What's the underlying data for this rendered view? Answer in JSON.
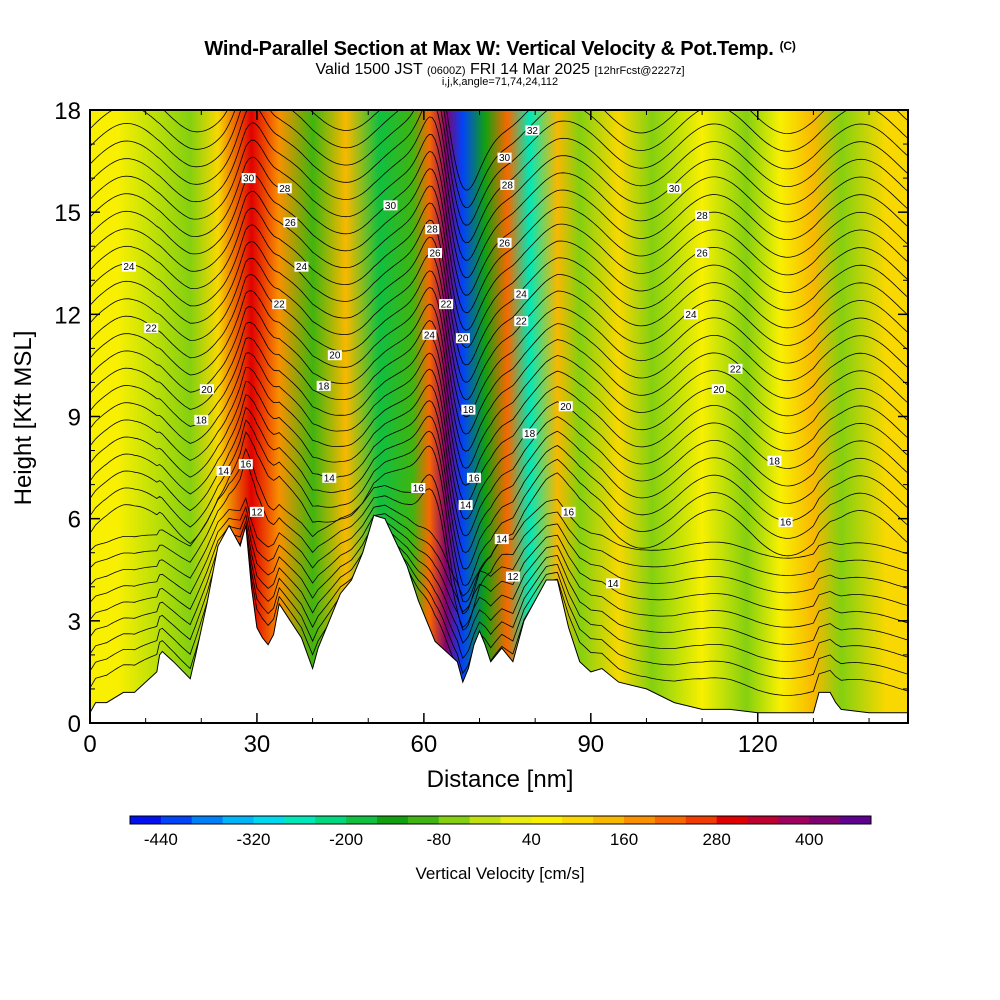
{
  "header": {
    "title": "Wind-Parallel Section at Max W: Vertical Velocity & Pot.Temp.",
    "copyright": "(C)",
    "valid_prefix": "Valid 1500 JST ",
    "valid_utc": "(0600Z)",
    "valid_date": " FRI 14 Mar 2025 ",
    "valid_fcst": "[12hrFcst@2227z]",
    "params": "i,j,k,angle=71,74,24,112"
  },
  "chart_data": {
    "type": "heatmap",
    "xlabel": "Distance [nm]",
    "ylabel": "Height [Kft MSL]",
    "xlim": [
      0,
      147
    ],
    "ylim": [
      0,
      18
    ],
    "x_ticks": [
      0,
      30,
      60,
      90,
      120
    ],
    "x_tick_labels": [
      "0",
      "30",
      "60",
      "90",
      "120"
    ],
    "y_ticks": [
      0,
      3,
      6,
      9,
      12,
      15,
      18
    ],
    "y_tick_labels": [
      "0",
      "3",
      "6",
      "9",
      "12",
      "15",
      "18"
    ],
    "colorbar": {
      "title": "Vertical Velocity [cm/s]",
      "min": -480,
      "max": 480,
      "step": 40,
      "tick_labels": [
        "-440",
        "-320",
        "-200",
        "-80",
        "40",
        "160",
        "280",
        "400"
      ],
      "tick_values": [
        -440,
        -320,
        -200,
        -80,
        40,
        160,
        280,
        400
      ],
      "colors": [
        "#0010f0",
        "#0044f8",
        "#0080f8",
        "#00b4f8",
        "#00d8f0",
        "#00e8b8",
        "#00d880",
        "#10c040",
        "#10a010",
        "#40b410",
        "#84d010",
        "#c0e010",
        "#e8ec10",
        "#f8f000",
        "#f8d800",
        "#f8b800",
        "#f89000",
        "#f86800",
        "#f03c00",
        "#e00000",
        "#c00030",
        "#a00060",
        "#800070",
        "#600090"
      ]
    },
    "vertical_velocity_features": [
      {
        "x_center": 5,
        "value": 40
      },
      {
        "x_center": 18,
        "value": -80
      },
      {
        "x_center": 23,
        "value": 80
      },
      {
        "x_center": 29,
        "value": 300
      },
      {
        "x_center": 34,
        "value": 160
      },
      {
        "x_center": 40,
        "value": -120
      },
      {
        "x_center": 46,
        "value": 120
      },
      {
        "x_center": 52,
        "value": -200
      },
      {
        "x_center": 58,
        "value": -100
      },
      {
        "x_center": 61,
        "value": 200
      },
      {
        "x_center": 64,
        "value": 400
      },
      {
        "x_center": 67,
        "value": -440
      },
      {
        "x_center": 71,
        "value": -160
      },
      {
        "x_center": 75,
        "value": 200
      },
      {
        "x_center": 79,
        "value": -280
      },
      {
        "x_center": 84,
        "value": 120
      },
      {
        "x_center": 88,
        "value": -80
      },
      {
        "x_center": 95,
        "value": 100
      },
      {
        "x_center": 101,
        "value": -80
      },
      {
        "x_center": 110,
        "value": 60
      },
      {
        "x_center": 118,
        "value": -80
      },
      {
        "x_center": 124,
        "value": 60
      },
      {
        "x_center": 130,
        "value": 120
      },
      {
        "x_center": 135,
        "value": -80
      },
      {
        "x_center": 143,
        "value": 80
      }
    ],
    "terrain": {
      "x": [
        0,
        1,
        3,
        6,
        8,
        10,
        12,
        12.5,
        13,
        15,
        18,
        19,
        21,
        23,
        25,
        26,
        27,
        28,
        29,
        30,
        31,
        32,
        33,
        34,
        36,
        38,
        40,
        41,
        43,
        45,
        47,
        49,
        51,
        53,
        55,
        57,
        59,
        61,
        62,
        64,
        66,
        67,
        68,
        69,
        70,
        71,
        72,
        74,
        76,
        78,
        80,
        82,
        84,
        86,
        88,
        90,
        92,
        95,
        100,
        105,
        110,
        115,
        120,
        125,
        130,
        131,
        133,
        134,
        135,
        140,
        147
      ],
      "y": [
        0.3,
        0.6,
        0.6,
        0.9,
        0.9,
        1.2,
        1.5,
        2.0,
        2.1,
        1.8,
        1.3,
        2.0,
        3.5,
        5.2,
        5.8,
        5.5,
        5.2,
        5.8,
        4.0,
        2.8,
        2.5,
        2.3,
        2.6,
        3.5,
        3.0,
        2.5,
        1.6,
        2.2,
        3.0,
        3.8,
        4.2,
        5.0,
        6.1,
        6.0,
        5.3,
        4.6,
        3.6,
        2.8,
        2.4,
        2.1,
        1.8,
        1.2,
        1.6,
        2.3,
        2.7,
        2.3,
        1.8,
        2.2,
        1.8,
        3.0,
        3.6,
        4.2,
        4.2,
        2.8,
        1.8,
        1.5,
        1.6,
        1.2,
        1.0,
        0.6,
        0.4,
        0.4,
        0.3,
        0.3,
        0.3,
        0.9,
        0.9,
        0.6,
        0.4,
        0.3,
        0.3
      ]
    },
    "theta_contour_labels": [
      {
        "x": 7,
        "y": 13.4,
        "text": "24"
      },
      {
        "x": 11,
        "y": 11.6,
        "text": "22"
      },
      {
        "x": 21,
        "y": 9.8,
        "text": "20"
      },
      {
        "x": 20,
        "y": 8.9,
        "text": "18"
      },
      {
        "x": 24,
        "y": 7.4,
        "text": "14"
      },
      {
        "x": 28,
        "y": 7.6,
        "text": "16"
      },
      {
        "x": 30,
        "y": 6.2,
        "text": "12"
      },
      {
        "x": 28.5,
        "y": 16.0,
        "text": "30"
      },
      {
        "x": 35,
        "y": 15.7,
        "text": "28"
      },
      {
        "x": 36,
        "y": 14.7,
        "text": "26"
      },
      {
        "x": 38,
        "y": 13.4,
        "text": "24"
      },
      {
        "x": 34,
        "y": 12.3,
        "text": "22"
      },
      {
        "x": 44,
        "y": 10.8,
        "text": "20"
      },
      {
        "x": 42,
        "y": 9.9,
        "text": "18"
      },
      {
        "x": 43,
        "y": 7.2,
        "text": "14"
      },
      {
        "x": 54,
        "y": 15.2,
        "text": "30"
      },
      {
        "x": 61.5,
        "y": 14.5,
        "text": "28"
      },
      {
        "x": 62,
        "y": 13.8,
        "text": "26"
      },
      {
        "x": 64,
        "y": 12.3,
        "text": "22"
      },
      {
        "x": 61,
        "y": 11.4,
        "text": "24"
      },
      {
        "x": 59,
        "y": 6.9,
        "text": "16"
      },
      {
        "x": 67,
        "y": 11.3,
        "text": "20"
      },
      {
        "x": 68,
        "y": 9.2,
        "text": "18"
      },
      {
        "x": 69,
        "y": 7.2,
        "text": "16"
      },
      {
        "x": 67.5,
        "y": 6.4,
        "text": "14"
      },
      {
        "x": 74.5,
        "y": 16.6,
        "text": "30"
      },
      {
        "x": 75,
        "y": 15.8,
        "text": "28"
      },
      {
        "x": 74.5,
        "y": 14.1,
        "text": "26"
      },
      {
        "x": 79.5,
        "y": 17.4,
        "text": "32"
      },
      {
        "x": 77.5,
        "y": 12.6,
        "text": "24"
      },
      {
        "x": 77.5,
        "y": 11.8,
        "text": "22"
      },
      {
        "x": 85.5,
        "y": 9.3,
        "text": "20"
      },
      {
        "x": 79,
        "y": 8.5,
        "text": "18"
      },
      {
        "x": 86,
        "y": 6.2,
        "text": "16"
      },
      {
        "x": 74,
        "y": 5.4,
        "text": "14"
      },
      {
        "x": 76,
        "y": 4.3,
        "text": "12"
      },
      {
        "x": 94,
        "y": 4.1,
        "text": "14"
      },
      {
        "x": 105,
        "y": 15.7,
        "text": "30"
      },
      {
        "x": 110,
        "y": 14.9,
        "text": "28"
      },
      {
        "x": 110,
        "y": 13.8,
        "text": "26"
      },
      {
        "x": 108,
        "y": 12.0,
        "text": "24"
      },
      {
        "x": 116,
        "y": 10.4,
        "text": "22"
      },
      {
        "x": 113,
        "y": 9.8,
        "text": "20"
      },
      {
        "x": 123,
        "y": 7.7,
        "text": "18"
      },
      {
        "x": 125,
        "y": 5.9,
        "text": "16"
      }
    ]
  }
}
